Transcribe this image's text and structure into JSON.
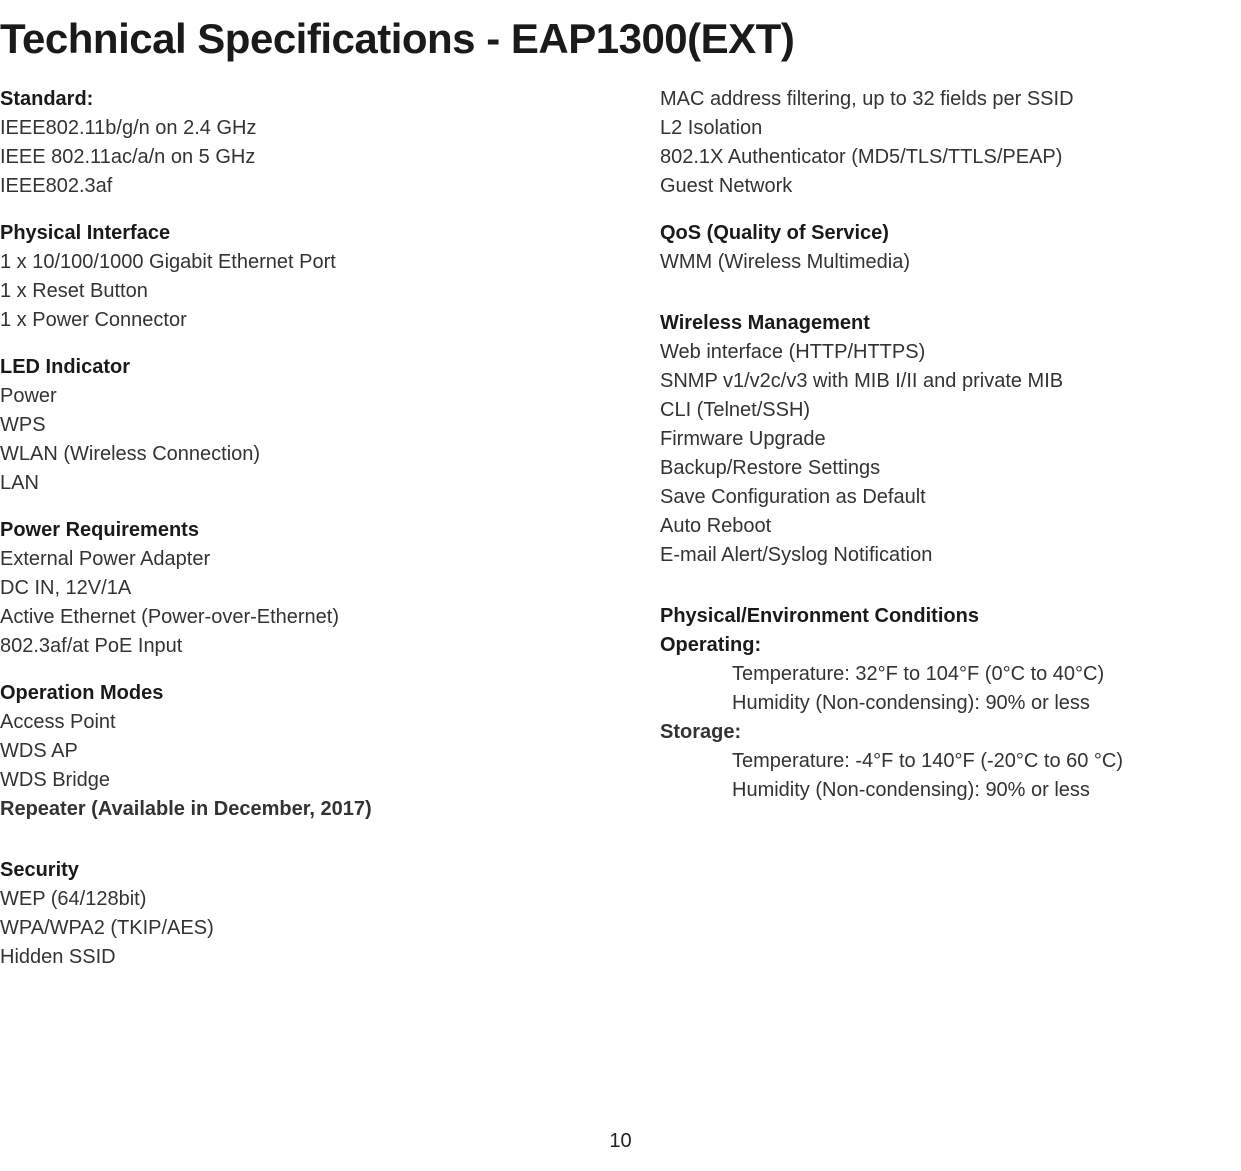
{
  "title": "Technical Specifications - EAP1300(EXT)",
  "pageNumber": "10",
  "left": {
    "standard": {
      "heading": "Standard:",
      "items": [
        "IEEE802.11b/g/n on 2.4 GHz",
        "IEEE 802.11ac/a/n on 5 GHz",
        "IEEE802.3af"
      ]
    },
    "physical": {
      "heading": "Physical Interface",
      "items": [
        "1 x 10/100/1000 Gigabit Ethernet Port",
        "1 x Reset Button",
        "1 x Power Connector"
      ]
    },
    "led": {
      "heading": "LED Indicator",
      "items": [
        "Power",
        "WPS",
        "WLAN (Wireless Connection)",
        "LAN"
      ]
    },
    "power": {
      "heading": "Power Requirements",
      "items": [
        "External Power Adapter",
        "DC IN, 12V/1A",
        "Active Ethernet (Power-over-Ethernet)",
        "802.3af/at PoE Input"
      ]
    },
    "operation": {
      "heading": "Operation Modes",
      "items": [
        "Access Point",
        "WDS AP",
        "WDS Bridge"
      ],
      "boldItem": "Repeater (Available in December, 2017)"
    },
    "security": {
      "heading": "Security",
      "items": [
        "WEP (64/128bit)",
        "WPA/WPA2 (TKIP/AES)",
        "Hidden SSID"
      ]
    }
  },
  "right": {
    "securityCont": {
      "items": [
        "MAC address filtering, up to 32 fields per SSID",
        "L2 Isolation",
        "802.1X Authenticator (MD5/TLS/TTLS/PEAP)",
        "Guest Network"
      ]
    },
    "qos": {
      "heading": "QoS (Quality of Service)",
      "items": [
        "WMM (Wireless Multimedia)"
      ]
    },
    "wireless": {
      "heading": "Wireless Management",
      "items": [
        "Web interface (HTTP/HTTPS)",
        "SNMP v1/v2c/v3 with MIB I/II and private MIB",
        "CLI (Telnet/SSH)",
        "Firmware Upgrade",
        "Backup/Restore Settings",
        "Save Configuration as Default",
        "Auto Reboot",
        "E-mail Alert/Syslog Notification"
      ]
    },
    "physical": {
      "heading": "Physical/Environment Conditions",
      "operatingLabel": "Operating:",
      "operating": [
        "Temperature: 32°F to 104°F (0°C to 40°C)",
        "Humidity (Non-condensing): 90% or less"
      ],
      "storageLabel": "Storage:",
      "storage": [
        "Temperature: -4°F to 140°F (-20°C to 60 °C)",
        "Humidity (Non-condensing): 90% or less"
      ]
    }
  }
}
